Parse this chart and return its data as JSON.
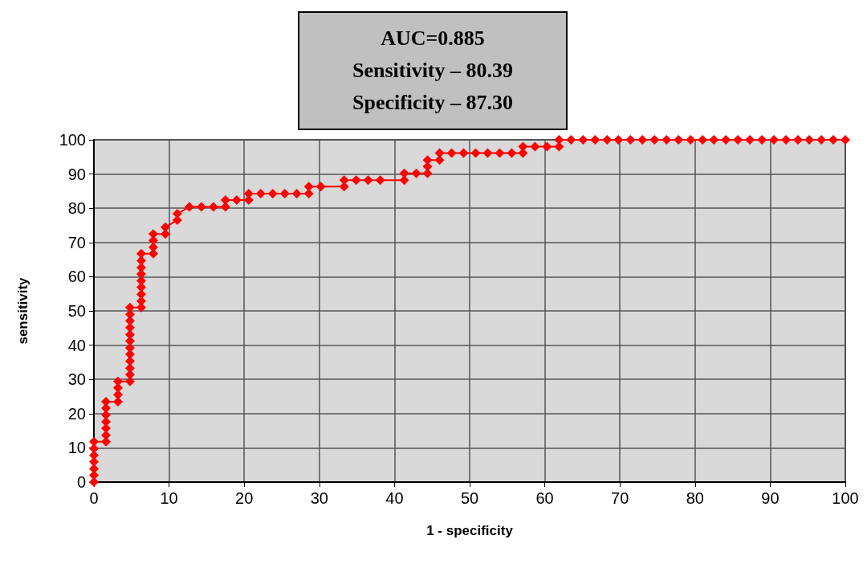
{
  "chart_data": {
    "type": "line",
    "xlabel": "1 - specificity",
    "ylabel": "sensitivity",
    "annotations": [
      "AUC=0.885",
      "Sensitivity – 80.39",
      "Specificity – 87.30"
    ],
    "xlim": [
      0,
      100
    ],
    "xticks": [
      0,
      10,
      20,
      30,
      40,
      50,
      60,
      70,
      80,
      90,
      100
    ],
    "ylim": [
      0,
      100
    ],
    "yticks": [
      0,
      10,
      20,
      30,
      40,
      50,
      60,
      70,
      80,
      90,
      100
    ],
    "grid": true,
    "marker": "diamond",
    "line_style": "solid",
    "series": [
      {
        "color": "#ff0000",
        "x": [
          0,
          0,
          0,
          0,
          0,
          0,
          0,
          1.6,
          1.6,
          1.6,
          1.6,
          1.6,
          1.6,
          1.6,
          3.2,
          3.2,
          3.2,
          3.2,
          4.8,
          4.8,
          4.8,
          4.8,
          4.8,
          4.8,
          4.8,
          4.8,
          4.8,
          4.8,
          4.8,
          4.8,
          6.3,
          6.3,
          6.3,
          6.3,
          6.3,
          6.3,
          6.3,
          6.3,
          6.3,
          7.9,
          7.9,
          7.9,
          7.9,
          9.5,
          9.5,
          11.1,
          11.1,
          12.7,
          14.3,
          15.9,
          17.5,
          17.5,
          19.0,
          20.6,
          20.6,
          22.2,
          23.8,
          25.4,
          27.0,
          28.6,
          28.6,
          30.2,
          33.3,
          33.3,
          34.9,
          36.5,
          38.1,
          41.3,
          41.3,
          42.9,
          44.4,
          44.4,
          44.4,
          46.0,
          46.0,
          47.6,
          49.2,
          50.8,
          52.4,
          54.0,
          55.6,
          57.1,
          57.1,
          58.7,
          60.3,
          61.9,
          61.9,
          63.5,
          65.1,
          66.7,
          68.3,
          69.8,
          71.4,
          73.0,
          74.6,
          76.2,
          77.8,
          79.4,
          81.0,
          82.5,
          84.1,
          85.7,
          87.3,
          88.9,
          90.5,
          92.1,
          93.7,
          95.2,
          96.8,
          98.4,
          100
        ],
        "values": [
          0,
          2.0,
          3.9,
          5.9,
          7.8,
          9.8,
          11.8,
          11.8,
          13.7,
          15.7,
          17.6,
          19.6,
          21.6,
          23.5,
          23.5,
          25.5,
          27.5,
          29.4,
          29.4,
          31.4,
          33.3,
          35.3,
          37.3,
          39.2,
          41.2,
          43.1,
          45.1,
          47.1,
          49.0,
          51.0,
          51.0,
          52.9,
          54.9,
          56.9,
          58.8,
          60.8,
          62.7,
          64.7,
          66.7,
          66.7,
          68.6,
          70.6,
          72.5,
          72.5,
          74.5,
          76.5,
          78.4,
          80.4,
          80.4,
          80.4,
          80.4,
          82.4,
          82.4,
          82.4,
          84.3,
          84.3,
          84.3,
          84.3,
          84.3,
          84.3,
          86.3,
          86.3,
          86.3,
          88.2,
          88.2,
          88.2,
          88.2,
          88.2,
          90.2,
          90.2,
          90.2,
          92.2,
          94.1,
          94.1,
          96.1,
          96.1,
          96.1,
          96.1,
          96.1,
          96.1,
          96.1,
          96.1,
          98.0,
          98.0,
          98.0,
          98.0,
          100,
          100,
          100,
          100,
          100,
          100,
          100,
          100,
          100,
          100,
          100,
          100,
          100,
          100,
          100,
          100,
          100,
          100,
          100,
          100,
          100,
          100,
          100,
          100,
          100
        ]
      }
    ]
  }
}
